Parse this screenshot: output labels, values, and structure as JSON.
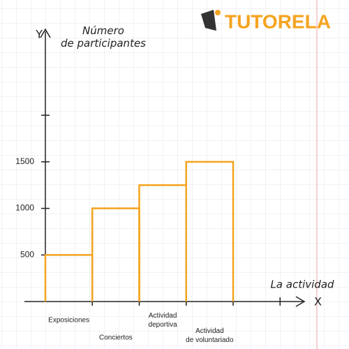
{
  "logo": "TUTORELA",
  "chart_data": {
    "type": "bar",
    "y_label": "Número de participantes",
    "x_label": "La actividad",
    "y_axis_name": "Y",
    "x_axis_name": "X",
    "categories": [
      "Exposiciones",
      "Conciertos",
      "Actividad deportiva",
      "Actividad de voluntariado"
    ],
    "values": [
      500,
      1000,
      1250,
      1500
    ],
    "color": "#f5a31f",
    "ylim": [
      0,
      2900
    ],
    "yticks": [
      500,
      1000,
      1500,
      {
        "value": 2000,
        "label": null
      }
    ],
    "grid": false
  }
}
